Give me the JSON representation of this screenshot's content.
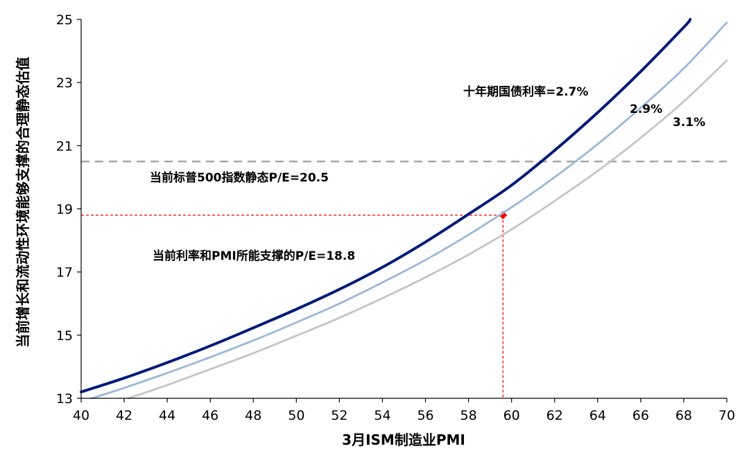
{
  "chart_data": {
    "type": "line",
    "title": "",
    "xlabel": "3月ISM制造业PMI",
    "ylabel": "当前增长和流动性环境能够支撑的合理静态估值",
    "xlim": [
      40,
      70
    ],
    "ylim": [
      13,
      25
    ],
    "x_ticks": [
      40,
      42,
      44,
      46,
      48,
      50,
      52,
      54,
      56,
      58,
      60,
      62,
      64,
      66,
      68,
      70
    ],
    "y_ticks": [
      13,
      15,
      17,
      19,
      21,
      23,
      25
    ],
    "grid": false,
    "colors": {
      "series_2_7": "#001a78",
      "series_2_9": "#9bb7d8",
      "series_3_1": "#c4c4c4",
      "reference": "#a6a6a6",
      "current": "#ff0000"
    },
    "series": [
      {
        "label": "十年期国债利率=2.7%",
        "x": [
          40,
          42,
          44,
          46,
          48,
          50,
          52,
          54,
          56,
          58,
          60,
          62,
          64,
          66,
          68,
          68.3
        ],
        "y": [
          13.2,
          13.64,
          14.13,
          14.66,
          15.23,
          15.82,
          16.45,
          17.15,
          17.95,
          18.83,
          19.75,
          20.85,
          22.05,
          23.35,
          24.75,
          25.0
        ]
      },
      {
        "label": "2.9%",
        "x": [
          40.5,
          42,
          44,
          46,
          48,
          50,
          52,
          54,
          56,
          58,
          60,
          62,
          64,
          66,
          68,
          70
        ],
        "y": [
          13.0,
          13.33,
          13.8,
          14.3,
          14.83,
          15.4,
          16.0,
          16.67,
          17.38,
          18.18,
          19.05,
          20.0,
          21.05,
          22.2,
          23.45,
          24.9
        ]
      },
      {
        "label": "3.1%",
        "x": [
          42.2,
          44,
          46,
          48,
          50,
          52,
          54,
          56,
          58,
          60,
          62,
          64,
          66,
          68,
          70
        ],
        "y": [
          13.0,
          13.42,
          13.92,
          14.43,
          14.98,
          15.55,
          16.17,
          16.83,
          17.55,
          18.35,
          19.25,
          20.2,
          21.25,
          22.4,
          23.7
        ]
      }
    ],
    "reference_line": {
      "y": 20.5,
      "label": "当前标普500指数静态P/E=20.5"
    },
    "current_point": {
      "x": 59.6,
      "y": 18.8,
      "label": "当前利率和PMI所能支撑的P/E=18.8"
    }
  }
}
